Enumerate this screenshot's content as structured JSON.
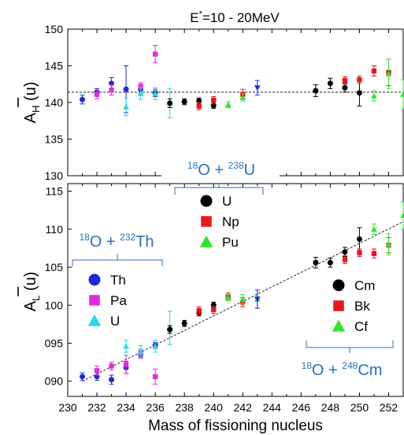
{
  "chart_data": [
    {
      "id": "upper",
      "type": "scatter",
      "title": "E*=10 - 20MeV",
      "title_main": "E",
      "title_sup": "*",
      "title_rest": "=10 - 20MeV",
      "xlabel": "",
      "ylabel": "Ā_H (u)",
      "ylabel_main": "A",
      "ylabel_sub": "H",
      "ylabel_unit": " (u)",
      "xlim": [
        230,
        253
      ],
      "ylim": [
        130,
        150
      ],
      "yticks": [
        130,
        135,
        140,
        145,
        150
      ],
      "grid": false,
      "reference_line": {
        "style": "dashed",
        "y": 141.4
      },
      "series": [
        {
          "name": "Th",
          "marker": "circle",
          "color": "#1f2bd6",
          "points": [
            {
              "x": 231,
              "y": 140.4,
              "err": 0.6
            },
            {
              "x": 232,
              "y": 141.4,
              "err": 0.5
            },
            {
              "x": 233,
              "y": 142.6,
              "err": 0.8
            },
            {
              "x": 234,
              "y": 141.8,
              "err": 3.2
            },
            {
              "x": 235,
              "y": 141.8,
              "err": 0.6
            },
            {
              "x": 236,
              "y": 141.3,
              "err": 0.5
            }
          ]
        },
        {
          "name": "Pa",
          "marker": "square",
          "color": "#e02ce0",
          "points": [
            {
              "x": 232,
              "y": 141.1,
              "err": 0.6
            },
            {
              "x": 233,
              "y": 141.7,
              "err": 0.7
            },
            {
              "x": 235,
              "y": 142.2,
              "err": 0.5
            },
            {
              "x": 236,
              "y": 146.6,
              "err": 1.2
            }
          ]
        },
        {
          "name": "U",
          "marker": "triangle",
          "color": "#26d9e6",
          "points": [
            {
              "x": 234,
              "y": 139.4,
              "err": 1.2
            },
            {
              "x": 235,
              "y": 141.2,
              "err": 0.8
            },
            {
              "x": 236,
              "y": 141.2,
              "err": 0.8
            },
            {
              "x": 237,
              "y": 139.9,
              "err": 2.0
            }
          ]
        },
        {
          "name": "U",
          "marker": "circle",
          "color": "#000000",
          "points": [
            {
              "x": 237,
              "y": 139.9,
              "err": 0.6
            },
            {
              "x": 238,
              "y": 140.1,
              "err": 0.4
            },
            {
              "x": 239,
              "y": 140.2,
              "err": 0.4
            },
            {
              "x": 240,
              "y": 139.6,
              "err": 0.4
            }
          ]
        },
        {
          "name": "Np",
          "marker": "square",
          "color": "#e8171c",
          "points": [
            {
              "x": 239,
              "y": 139.5,
              "err": 0.5
            },
            {
              "x": 240,
              "y": 140.3,
              "err": 0.5
            },
            {
              "x": 242,
              "y": 141.1,
              "err": 0.7
            }
          ]
        },
        {
          "name": "Pu",
          "marker": "triangle",
          "color": "#2ee62e",
          "points": [
            {
              "x": 241,
              "y": 139.7,
              "err": 0.4
            },
            {
              "x": 242,
              "y": 140.7,
              "err": 0.5
            }
          ]
        },
        {
          "name": "",
          "marker": "triangle-down",
          "color": "#1f2bd6",
          "points": [
            {
              "x": 243,
              "y": 142.0,
              "err": 1.0
            }
          ]
        },
        {
          "name": "Cm",
          "marker": "circle",
          "color": "#000000",
          "points": [
            {
              "x": 247,
              "y": 141.6,
              "err": 0.8
            },
            {
              "x": 248,
              "y": 142.6,
              "err": 0.7
            },
            {
              "x": 249,
              "y": 142.0,
              "err": 0.6
            },
            {
              "x": 250,
              "y": 141.3,
              "err": 1.8
            }
          ]
        },
        {
          "name": "Bk",
          "marker": "square",
          "color": "#e8171c",
          "points": [
            {
              "x": 249,
              "y": 143.0,
              "err": 0.5
            },
            {
              "x": 250,
              "y": 143.1,
              "err": 0.5
            },
            {
              "x": 251,
              "y": 144.3,
              "err": 0.7
            },
            {
              "x": 252,
              "y": 144.1,
              "err": 1.8
            }
          ]
        },
        {
          "name": "Cf",
          "marker": "triangle",
          "color": "#2ee62e",
          "points": [
            {
              "x": 251,
              "y": 140.9,
              "err": 0.7
            },
            {
              "x": 252,
              "y": 143.9,
              "err": 2.0
            },
            {
              "x": 253,
              "y": 141.1,
              "err": 2.0
            }
          ]
        }
      ]
    },
    {
      "id": "lower",
      "type": "scatter",
      "title": "",
      "xlabel": "Mass of fissioning nucleus",
      "ylabel": "Ā_L (u)",
      "ylabel_main": "A",
      "ylabel_sub": "L",
      "ylabel_unit": " (u)",
      "xlim": [
        230,
        253
      ],
      "ylim": [
        88,
        116
      ],
      "xticks": [
        230,
        232,
        234,
        236,
        238,
        240,
        242,
        244,
        246,
        248,
        250,
        252
      ],
      "yticks": [
        90,
        95,
        100,
        105,
        110,
        115
      ],
      "ytick_labels": [
        "090",
        "095",
        "100",
        "105",
        "110",
        "115"
      ],
      "grid": false,
      "fit_line": {
        "style": "dashed",
        "x": [
          231,
          253
        ],
        "y": [
          90.0,
          111.0
        ]
      },
      "series": [
        {
          "name": "Th",
          "marker": "circle",
          "color": "#1f2bd6",
          "points": [
            {
              "x": 231,
              "y": 90.6,
              "err": 0.5
            },
            {
              "x": 232,
              "y": 90.6,
              "err": 0.5
            },
            {
              "x": 233,
              "y": 90.2,
              "err": 0.6
            },
            {
              "x": 234,
              "y": 91.8,
              "err": 0.8
            },
            {
              "x": 235,
              "y": 93.6,
              "err": 0.4
            },
            {
              "x": 236,
              "y": 94.7,
              "err": 0.4
            }
          ]
        },
        {
          "name": "Pa",
          "marker": "square",
          "color": "#e02ce0",
          "points": [
            {
              "x": 232,
              "y": 91.4,
              "err": 0.6
            },
            {
              "x": 233,
              "y": 92.0,
              "err": 0.5
            },
            {
              "x": 234,
              "y": 92.2,
              "err": 1.2
            },
            {
              "x": 235,
              "y": 93.6,
              "err": 0.6
            },
            {
              "x": 236,
              "y": 90.6,
              "err": 1.0
            }
          ]
        },
        {
          "name": "U",
          "marker": "triangle",
          "color": "#26d9e6",
          "points": [
            {
              "x": 234,
              "y": 94.6,
              "err": 0.8
            },
            {
              "x": 235,
              "y": 93.9,
              "err": 0.8
            },
            {
              "x": 236,
              "y": 94.6,
              "err": 0.8
            },
            {
              "x": 237,
              "y": 97.0,
              "err": 2.2
            }
          ]
        },
        {
          "name": "U",
          "marker": "circle",
          "color": "#000000",
          "points": [
            {
              "x": 237,
              "y": 96.8,
              "err": 0.5
            },
            {
              "x": 238,
              "y": 97.6,
              "err": 0.4
            },
            {
              "x": 239,
              "y": 99.0,
              "err": 0.4
            },
            {
              "x": 240,
              "y": 100.0,
              "err": 0.4
            }
          ]
        },
        {
          "name": "Np",
          "marker": "square",
          "color": "#e8171c",
          "points": [
            {
              "x": 239,
              "y": 99.3,
              "err": 0.5
            },
            {
              "x": 240,
              "y": 99.4,
              "err": 0.5
            },
            {
              "x": 241,
              "y": 101.1,
              "err": 0.5
            },
            {
              "x": 242,
              "y": 100.4,
              "err": 0.6
            }
          ]
        },
        {
          "name": "Pu",
          "marker": "triangle",
          "color": "#2ee62e",
          "points": [
            {
              "x": 241,
              "y": 101.0,
              "err": 0.4
            },
            {
              "x": 242,
              "y": 100.8,
              "err": 0.6
            },
            {
              "x": 243,
              "y": 100.8,
              "err": 1.2
            }
          ]
        },
        {
          "name": "",
          "marker": "triangle-down",
          "color": "#1f2bd6",
          "points": [
            {
              "x": 243,
              "y": 100.8,
              "err": 1.2
            }
          ]
        },
        {
          "name": "Cm",
          "marker": "circle",
          "color": "#000000",
          "points": [
            {
              "x": 247,
              "y": 105.6,
              "err": 0.7
            },
            {
              "x": 248,
              "y": 105.6,
              "err": 0.6
            },
            {
              "x": 249,
              "y": 107.0,
              "err": 0.6
            },
            {
              "x": 250,
              "y": 108.7,
              "err": 1.5
            }
          ]
        },
        {
          "name": "Bk",
          "marker": "square",
          "color": "#e8171c",
          "points": [
            {
              "x": 249,
              "y": 106.0,
              "err": 0.5
            },
            {
              "x": 250,
              "y": 106.9,
              "err": 0.5
            },
            {
              "x": 251,
              "y": 106.8,
              "err": 0.6
            },
            {
              "x": 252,
              "y": 107.9,
              "err": 1.0
            }
          ]
        },
        {
          "name": "Cf",
          "marker": "triangle",
          "color": "#2ee62e",
          "points": [
            {
              "x": 251,
              "y": 110.0,
              "err": 0.7
            },
            {
              "x": 252,
              "y": 108.0,
              "err": 1.4
            },
            {
              "x": 253,
              "y": 111.8,
              "err": 1.8
            }
          ]
        }
      ]
    }
  ],
  "annotations": {
    "th_group": {
      "mass_projectile": "18",
      "projectile": "O + ",
      "mass_target": "232",
      "target": "Th"
    },
    "u_group": {
      "mass_projectile": "18",
      "projectile": "O + ",
      "mass_target": "238",
      "target": "U"
    },
    "cm_group": {
      "mass_projectile": "18",
      "projectile": "O + ",
      "mass_target": "248",
      "target": "Cm"
    },
    "label_color": "#2a6fb5"
  },
  "legends": {
    "th_legend": [
      {
        "label": "Th",
        "marker": "circle",
        "color": "#1f2bd6"
      },
      {
        "label": "Pa",
        "marker": "square",
        "color": "#e02ce0"
      },
      {
        "label": "U",
        "marker": "triangle",
        "color": "#26d9e6"
      }
    ],
    "u_legend": [
      {
        "label": "U",
        "marker": "circle",
        "color": "#000000"
      },
      {
        "label": "Np",
        "marker": "square",
        "color": "#e8171c"
      },
      {
        "label": "Pu",
        "marker": "triangle",
        "color": "#2ee62e"
      }
    ],
    "cm_legend": [
      {
        "label": "Cm",
        "marker": "circle",
        "color": "#000000"
      },
      {
        "label": "Bk",
        "marker": "square",
        "color": "#e8171c"
      },
      {
        "label": "Cf",
        "marker": "triangle",
        "color": "#2ee62e"
      }
    ]
  }
}
